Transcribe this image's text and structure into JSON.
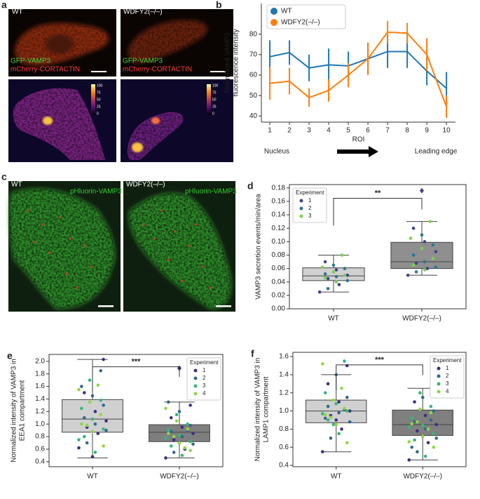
{
  "figure_a": {
    "panel_label": "a",
    "left_title": "WT",
    "right_title": "WDFY2(–/–)",
    "channel_labels": [
      "GFP-VAMP3",
      "mCherry-CORTACTIN"
    ],
    "colorbar_ticks": [
      "100",
      "75",
      "50",
      "25",
      "0"
    ]
  },
  "figure_c": {
    "panel_label": "c",
    "left_title": "WT",
    "right_title": "WDFY2(–/–)",
    "channel_label": "pHluorin-VAMP3"
  },
  "chart_data": [
    {
      "type": "line",
      "panel_label": "b",
      "x": [
        1,
        2,
        3,
        4,
        5,
        6,
        7,
        8,
        9,
        10
      ],
      "xlim": [
        0.57,
        10.46
      ],
      "xticks": [
        1,
        2,
        3,
        4,
        5,
        6,
        7,
        8,
        9,
        10
      ],
      "ylim": [
        37,
        95
      ],
      "yticks": [
        40,
        50,
        60,
        70,
        80
      ],
      "xlabel": "ROI",
      "ylabel": [
        "Normalized VAMP3",
        "fluorescence intensity"
      ],
      "annotations": [
        "Nucleus",
        "Leading edge"
      ],
      "legend": "upper left",
      "series": [
        {
          "name": "WT",
          "color": "#1f77b4",
          "values": [
            69,
            71,
            63.5,
            65,
            64.5,
            68,
            71.5,
            71.5,
            62,
            53.5
          ],
          "errors": [
            8,
            6,
            6.5,
            8,
            7,
            7.5,
            8,
            8,
            7,
            8
          ]
        },
        {
          "name": "WDFY2(–/–)",
          "color": "#ff7f0e",
          "values": [
            56,
            57,
            49,
            52.5,
            60,
            68,
            81,
            80.5,
            70,
            44.5
          ],
          "errors": [
            8,
            6.5,
            4.5,
            5.5,
            6,
            8,
            5.5,
            5,
            8,
            5.5
          ]
        }
      ]
    },
    {
      "type": "box",
      "panel_label": "d",
      "categories": [
        "WT",
        "WDFY2(–/–)"
      ],
      "ylim": [
        0,
        0.185
      ],
      "yticks": [
        {
          "value": 0,
          "label": "0.00"
        },
        0.02,
        0.04,
        0.06,
        0.08,
        {
          "value": 0.1,
          "label": "0.10"
        },
        0.12,
        0.14,
        0.16,
        0.18
      ],
      "ylabel": "VAMP3 secretion events/min/area",
      "significance": "**",
      "legend_title": "Experiment",
      "legend": "upper left",
      "groups": [
        {
          "name": "1",
          "color": "#414487"
        },
        {
          "name": "2",
          "color": "#2a788e"
        },
        {
          "name": "3",
          "color": "#7ad151"
        }
      ],
      "boxes": [
        {
          "color": "#d0d0d0",
          "whislo": 0.025,
          "q1": 0.042,
          "med": 0.049,
          "q3": 0.061,
          "whishi": 0.08,
          "fliers": [],
          "points": [
            [
              0.025,
              0.036,
              0.045,
              0.05,
              0.058,
              0.07
            ],
            [
              0.03,
              0.042,
              0.048,
              0.052,
              0.06,
              0.065
            ],
            [
              0.04,
              0.046,
              0.05,
              0.055,
              0.062,
              0.08
            ]
          ]
        },
        {
          "color": "#8f8f8f",
          "whislo": 0.05,
          "q1": 0.06,
          "med": 0.07,
          "q3": 0.099,
          "whishi": 0.13,
          "fliers": [
            0.176
          ],
          "points": [
            [
              0.05,
              0.06,
              0.068,
              0.085,
              0.1,
              0.12
            ],
            [
              0.055,
              0.062,
              0.07,
              0.08,
              0.095,
              0.11
            ],
            [
              0.058,
              0.065,
              0.075,
              0.09,
              0.105,
              0.13
            ]
          ]
        }
      ]
    },
    {
      "type": "box",
      "panel_label": "e",
      "categories": [
        "WT",
        "WDFY2(–/–)"
      ],
      "ylim": [
        0.32,
        2.11
      ],
      "yticks": [
        0.4,
        0.6,
        0.8,
        {
          "value": 1,
          "label": "1.0"
        },
        1.2,
        1.4,
        1.6,
        1.8,
        {
          "value": 2,
          "label": "2.0"
        }
      ],
      "ylabel": [
        "Normalized intensity of VAMP3 in",
        "EEA1 compartment"
      ],
      "significance": "***",
      "legend_title": "Experiment",
      "legend": "upper right",
      "groups": [
        {
          "name": "1",
          "color": "#3b2f7f"
        },
        {
          "name": "2",
          "color": "#31688e"
        },
        {
          "name": "3",
          "color": "#35b779"
        },
        {
          "name": "4",
          "color": "#90d743"
        }
      ],
      "boxes": [
        {
          "color": "#d0d0d0",
          "whislo": 0.46,
          "q1": 0.87,
          "med": 1.08,
          "q3": 1.39,
          "whishi": 2.03,
          "fliers": [],
          "points": [
            [
              0.62,
              0.85,
              0.95,
              1.05,
              1.2,
              1.5,
              2.03,
              0.48
            ],
            [
              0.7,
              0.9,
              1.0,
              1.1,
              1.3,
              1.45,
              1.6,
              1.85
            ],
            [
              0.55,
              0.8,
              0.92,
              1.08,
              1.25,
              1.38,
              1.7,
              0.75
            ],
            [
              0.65,
              0.88,
              1.0,
              1.15,
              1.35,
              1.55,
              1.62,
              0.98
            ]
          ]
        },
        {
          "color": "#7f7f7f",
          "whislo": 0.46,
          "q1": 0.72,
          "med": 0.87,
          "q3": 0.99,
          "whishi": 1.35,
          "fliers": [
            1.89
          ],
          "points": [
            [
              0.46,
              0.6,
              0.75,
              0.85,
              0.95,
              1.1,
              1.3,
              0.7
            ],
            [
              0.55,
              0.68,
              0.8,
              0.88,
              0.98,
              1.2,
              1.35,
              0.9
            ],
            [
              0.5,
              0.65,
              0.72,
              0.82,
              0.9,
              1.0,
              1.15,
              0.78
            ],
            [
              0.58,
              0.7,
              0.85,
              0.92,
              1.05,
              1.25,
              0.62,
              0.8
            ]
          ]
        }
      ]
    },
    {
      "type": "box",
      "panel_label": "f",
      "categories": [
        "WT",
        "WDFY2(–/–)"
      ],
      "ylim": [
        0.385,
        1.647
      ],
      "yticks": [
        0.4,
        0.6,
        0.8,
        {
          "value": 1,
          "label": "1.0"
        },
        1.2,
        1.4,
        1.6
      ],
      "ylabel": [
        "Normalized intensity of VAMP3 in",
        "LAMP1 compartment"
      ],
      "significance": "***",
      "legend_title": "Experiment",
      "legend": "upper right",
      "groups": [
        {
          "name": "1",
          "color": "#3b2f7f"
        },
        {
          "name": "2",
          "color": "#31688e"
        },
        {
          "name": "3",
          "color": "#35b779"
        },
        {
          "name": "4",
          "color": "#90d743"
        }
      ],
      "boxes": [
        {
          "color": "#d0d0d0",
          "whislo": 0.55,
          "q1": 0.87,
          "med": 1.0,
          "q3": 1.12,
          "whishi": 1.4,
          "fliers": [],
          "points": [
            [
              0.55,
              0.8,
              0.95,
              1.0,
              1.1,
              1.3,
              1.5,
              0.9
            ],
            [
              0.7,
              0.88,
              0.98,
              1.05,
              1.15,
              1.4,
              0.92,
              1.02
            ],
            [
              0.75,
              0.9,
              1.0,
              1.08,
              1.2,
              1.55,
              0.85,
              0.97
            ],
            [
              0.65,
              0.85,
              0.96,
              1.03,
              1.12,
              1.52,
              1.25,
              0.93
            ]
          ]
        },
        {
          "color": "#7f7f7f",
          "whislo": 0.46,
          "q1": 0.73,
          "med": 0.85,
          "q3": 1.01,
          "whishi": 1.25,
          "fliers": [],
          "points": [
            [
              0.46,
              0.65,
              0.78,
              0.85,
              0.95,
              1.1,
              1.25,
              0.72
            ],
            [
              0.55,
              0.7,
              0.8,
              0.88,
              1.0,
              1.15,
              0.6,
              0.9
            ],
            [
              0.5,
              0.68,
              0.75,
              0.84,
              0.92,
              1.05,
              1.2,
              0.82
            ],
            [
              0.6,
              0.72,
              0.86,
              0.98,
              1.02,
              0.66,
              0.8,
              0.88
            ]
          ]
        }
      ]
    }
  ]
}
